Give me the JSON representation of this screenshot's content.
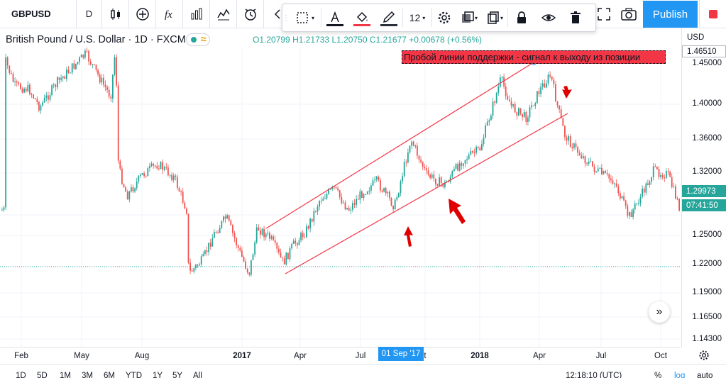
{
  "toolbar": {
    "symbol": "GBPUSD",
    "interval": "D",
    "publish_label": "Publish",
    "icons": [
      "candles-icon",
      "plus-circle-icon",
      "fx-icon",
      "bars-compare-icon",
      "templates-icon",
      "alert-clock-icon",
      "chevron-left-icon"
    ]
  },
  "drawing_toolbar": {
    "font_size": "12",
    "text_color": "#131722",
    "fill_color": "#f23645",
    "line_color": "#2a2e39"
  },
  "legend": {
    "title": "British Pound / U.S. Dollar · 1D · FXCM",
    "open": "O1.20799",
    "high": "H1.21733",
    "low": "L1.20750",
    "close": "C1.21677",
    "change": "+0.00678 (+0.56%)"
  },
  "annotation": {
    "text": "Пробой линии поддержки - сигнал к выходу из позиции"
  },
  "price_axis": {
    "currency": "USD",
    "labels": [
      "1.45000",
      "1.40000",
      "1.36000",
      "1.32000",
      "1.25000",
      "1.22000",
      "1.19000",
      "1.16500",
      "1.14300"
    ],
    "tags": [
      {
        "value": "1.46510",
        "color": "#ffffff",
        "text_color": "#131722"
      },
      {
        "value": "1.29973",
        "color": "#26a69a",
        "text_color": "#ffffff"
      },
      {
        "value": "07:41:50",
        "color": "#26a69a",
        "text_color": "#ffffff"
      }
    ]
  },
  "time_axis": {
    "labels": [
      {
        "text": "Feb",
        "bold": false
      },
      {
        "text": "May",
        "bold": false
      },
      {
        "text": "Aug",
        "bold": false
      },
      {
        "text": "2017",
        "bold": true
      },
      {
        "text": "Apr",
        "bold": false
      },
      {
        "text": "Jul",
        "bold": false
      },
      {
        "text": "t",
        "bold": false
      },
      {
        "text": "2018",
        "bold": true
      },
      {
        "text": "Apr",
        "bold": false
      },
      {
        "text": "Jul",
        "bold": false
      },
      {
        "text": "Oct",
        "bold": false
      }
    ],
    "cursor_date": "01 Sep '17"
  },
  "bottom_bar": {
    "ranges": [
      "1D",
      "5D",
      "1M",
      "3M",
      "6M",
      "YTD",
      "1Y",
      "5Y",
      "All"
    ],
    "clock": "12:18:10 (UTC)",
    "percent": "%",
    "log": "log",
    "auto": "auto"
  },
  "colors": {
    "up": "#26a69a",
    "down": "#ef5350",
    "channel": "#f23645",
    "arrows": "#e00000",
    "accent": "#2196f3"
  }
}
